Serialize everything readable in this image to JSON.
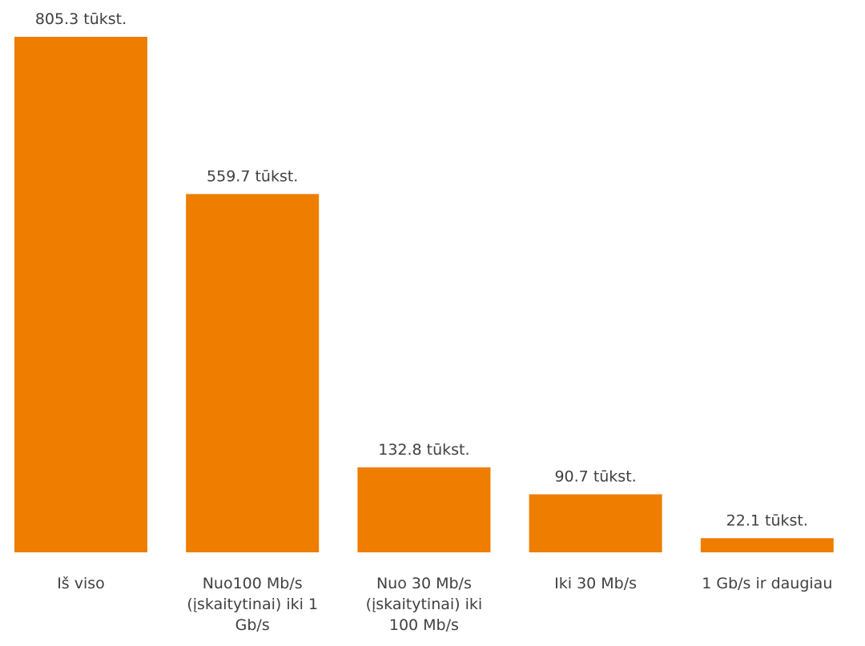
{
  "chart_data": {
    "type": "bar",
    "categories": [
      [
        "Iš viso"
      ],
      [
        "Nuo100 Mb/s",
        "(įskaitytinai) iki 1",
        "Gb/s"
      ],
      [
        "Nuo 30 Mb/s",
        "(įskaitytinai) iki",
        "100 Mb/s"
      ],
      [
        "Iki 30 Mb/s"
      ],
      [
        "1 Gb/s ir daugiau"
      ]
    ],
    "values": [
      805.3,
      559.7,
      132.8,
      90.7,
      22.1
    ],
    "data_labels": [
      "805.3 tūkst.",
      "559.7 tūkst.",
      "132.8 tūkst.",
      "90.7 tūkst.",
      "22.1 tūkst."
    ],
    "title": "",
    "xlabel": "",
    "ylabel": "",
    "ylim": [
      0,
      805.3
    ],
    "grid": false,
    "legend": "none",
    "bar_color": "#EE7D00",
    "text_color": "#404040"
  }
}
